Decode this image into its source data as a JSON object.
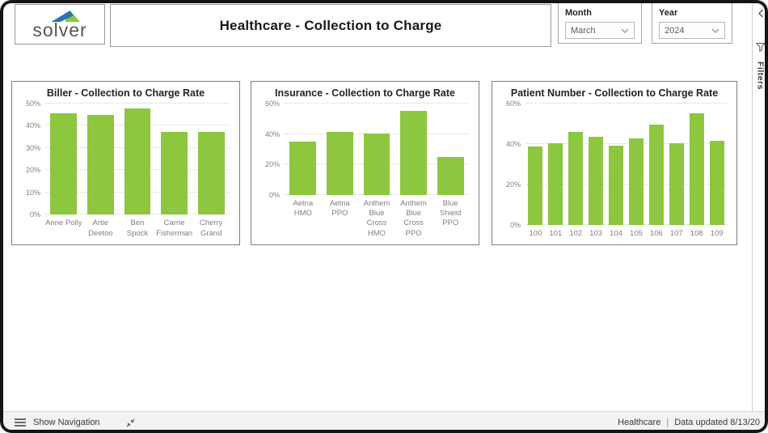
{
  "header": {
    "logo_text": "solver",
    "title": "Healthcare - Collection to Charge",
    "slicers": {
      "month": {
        "label": "Month",
        "value": "March"
      },
      "year": {
        "label": "Year",
        "value": "2024"
      }
    }
  },
  "filters_pane": {
    "label": "Filters"
  },
  "colors": {
    "bar_green": "#8DC63F",
    "logo_blue": "#2B72B8",
    "logo_green": "#8DC63F",
    "axis_text": "#808080"
  },
  "chart_data": [
    {
      "type": "bar",
      "title": "Biller - Collection to Charge Rate",
      "categories": [
        "Anne Polly",
        "Artie\nDeetoo",
        "Ben Spock",
        "Carrie\nFisherman",
        "Cherry\nGrand"
      ],
      "values": [
        45.5,
        45,
        48,
        37.4,
        37.4
      ],
      "xlabel": "",
      "ylabel": "",
      "ylim": [
        0,
        50
      ],
      "yticks": [
        0,
        10,
        20,
        30,
        40,
        50
      ],
      "ytick_suffix": "%",
      "grid": "dotted-horizontal",
      "legend": "none",
      "bar_color": "#8DC63F"
    },
    {
      "type": "bar",
      "title": "Insurance - Collection to Charge Rate",
      "categories": [
        "Aetna\nHMO",
        "Aetna PPO",
        "Anthem\nBlue Cross\nHMO",
        "Anthem\nBlue Cross\nPPO",
        "Blue Shield\nPPO"
      ],
      "values": [
        35,
        41.5,
        40.5,
        55,
        25
      ],
      "xlabel": "",
      "ylabel": "",
      "ylim": [
        0,
        60
      ],
      "yticks": [
        0,
        20,
        40,
        60
      ],
      "ytick_suffix": "%",
      "grid": "dotted-horizontal",
      "legend": "none",
      "bar_color": "#8DC63F"
    },
    {
      "type": "bar",
      "title": "Patient Number - Collection to Charge Rate",
      "categories": [
        "100",
        "101",
        "102",
        "103",
        "104",
        "105",
        "106",
        "107",
        "108",
        "109"
      ],
      "values": [
        38.7,
        40.3,
        45.8,
        43.5,
        39,
        42.8,
        49.5,
        40.5,
        55.3,
        41.5
      ],
      "xlabel": "",
      "ylabel": "",
      "ylim": [
        0,
        60
      ],
      "yticks": [
        0,
        20,
        40,
        60
      ],
      "ytick_suffix": "%",
      "grid": "dotted-horizontal",
      "legend": "none",
      "bar_color": "#8DC63F"
    }
  ],
  "footer": {
    "show_navigation": "Show Navigation",
    "report_name": "Healthcare",
    "separator": "|",
    "data_updated": "Data updated 8/13/20"
  }
}
